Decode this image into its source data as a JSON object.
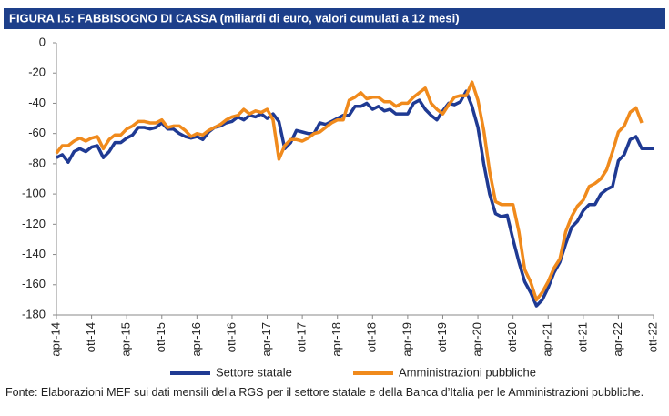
{
  "chart_data": {
    "type": "line",
    "title": "FIGURA I.5: FABBISOGNO DI CASSA (miliardi di euro, valori cumulati a 12 mesi)",
    "categories": [
      "apr-14",
      null,
      null,
      null,
      null,
      null,
      "ott-14",
      null,
      null,
      null,
      null,
      null,
      "apr-15",
      null,
      null,
      null,
      null,
      null,
      "ott-15",
      null,
      null,
      null,
      null,
      null,
      "apr-16",
      null,
      null,
      null,
      null,
      null,
      "ott-16",
      null,
      null,
      null,
      null,
      null,
      "apr-17",
      null,
      null,
      null,
      null,
      null,
      "ott-17",
      null,
      null,
      null,
      null,
      null,
      "apr-18",
      null,
      null,
      null,
      null,
      null,
      "ott-18",
      null,
      null,
      null,
      null,
      null,
      "apr-19",
      null,
      null,
      null,
      null,
      null,
      "ott-19",
      null,
      null,
      null,
      null,
      null,
      "apr-20",
      null,
      null,
      null,
      null,
      null,
      "ott-20",
      null,
      null,
      null,
      null,
      null,
      "apr-21",
      null,
      null,
      null,
      null,
      null,
      "ott-21",
      null,
      null,
      null,
      null,
      null,
      "apr-22",
      null,
      null,
      null,
      null,
      null,
      "ott-22"
    ],
    "series": [
      {
        "name": "Settore statale",
        "color": "#1f3a93",
        "values": [
          -76,
          -74,
          -79,
          -72,
          -70,
          -72,
          -69,
          -68,
          -76,
          -72,
          -66,
          -66,
          -63,
          -61,
          -56,
          -56,
          -57,
          -56,
          -53,
          -57,
          -57,
          -60,
          -62,
          -63,
          -62,
          -64,
          -59,
          -56,
          -55,
          -53,
          -52,
          -49,
          -51,
          -48,
          -49,
          -47,
          -50,
          -47,
          -52,
          -70,
          -66,
          -58,
          -59,
          -60,
          -60,
          -53,
          -54,
          -52,
          -50,
          -48,
          -48,
          -42,
          -42,
          -40,
          -44,
          -42,
          -45,
          -44,
          -47,
          -47,
          -47,
          -40,
          -38,
          -44,
          -48,
          -51,
          -45,
          -40,
          -41,
          -39,
          -32,
          -42,
          -56,
          -80,
          -100,
          -113,
          -115,
          -114,
          -130,
          -145,
          -158,
          -165,
          -174,
          -170,
          -162,
          -152,
          -145,
          -133,
          -122,
          -118,
          -111,
          -107,
          -107,
          -100,
          -97,
          -95,
          -78,
          -74,
          -64,
          -62,
          -70,
          -70,
          -70
        ]
      },
      {
        "name": "Amministrazioni pubbliche",
        "color": "#f08a1c",
        "values": [
          -73,
          -68,
          -68,
          -65,
          -63,
          -65,
          -63,
          -62,
          -70,
          -64,
          -61,
          -61,
          -57,
          -55,
          -52,
          -52,
          -53,
          -53,
          -51,
          -56,
          -55,
          -55,
          -58,
          -62,
          -60,
          -61,
          -58,
          -56,
          -54,
          -51,
          -49,
          -48,
          -44,
          -47,
          -45,
          -46,
          -44,
          -51,
          -77,
          -68,
          -64,
          -64,
          -65,
          -63,
          -60,
          -59,
          -56,
          -53,
          -51,
          -51,
          -38,
          -36,
          -33,
          -37,
          -36,
          -36,
          -39,
          -39,
          -42,
          -40,
          -40,
          -36,
          -33,
          -30,
          -40,
          -44,
          -47,
          -41,
          -36,
          -35,
          -35,
          -26,
          -38,
          -58,
          -85,
          -105,
          -107,
          -107,
          -107,
          -125,
          -150,
          -158,
          -170,
          -165,
          -158,
          -149,
          -143,
          -125,
          -115,
          -108,
          -104,
          -95,
          -93,
          -90,
          -84,
          -72,
          -59,
          -55,
          -46,
          -43,
          -53,
          null,
          null
        ]
      }
    ],
    "ylim": [
      -180,
      0
    ],
    "yticks": [
      -180,
      -160,
      -140,
      -120,
      -100,
      -80,
      -60,
      -40,
      -20,
      0
    ],
    "source": "Fonte: Elaborazioni MEF sui dati mensili della RGS per il settore statale e della Banca d’Italia per le Amministrazioni pubbliche."
  }
}
